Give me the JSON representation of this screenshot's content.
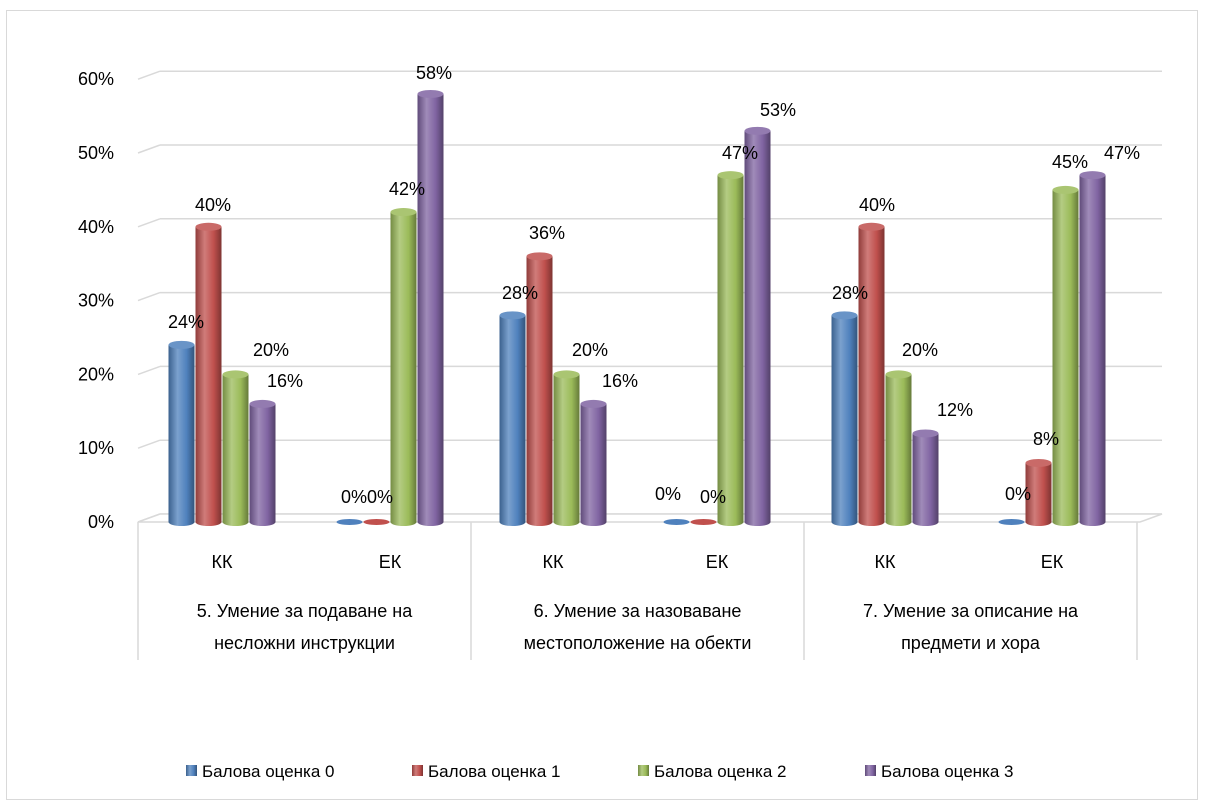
{
  "chart_data": {
    "type": "bar",
    "groups": [
      {
        "label_lines": [
          "5. Умение за подаване на",
          "несложни инструкции"
        ],
        "subcategories": [
          "КК",
          "ЕК"
        ]
      },
      {
        "label_lines": [
          "6. Умение за назоваване",
          "местоположение на обекти"
        ],
        "subcategories": [
          "КК",
          "ЕК"
        ]
      },
      {
        "label_lines": [
          "7. Умение за описание на",
          "предмети и хора"
        ],
        "subcategories": [
          "КК",
          "ЕК"
        ]
      }
    ],
    "categories": [
      "КК",
      "ЕК",
      "КК",
      "ЕК",
      "КК",
      "ЕК"
    ],
    "series": [
      {
        "name": "Балова оценка 0",
        "color": "#4F81BD",
        "values": [
          24,
          0,
          28,
          0,
          28,
          0
        ]
      },
      {
        "name": "Балова оценка 1",
        "color": "#C0504D",
        "values": [
          40,
          0,
          36,
          0,
          40,
          8
        ]
      },
      {
        "name": "Балова оценка 2",
        "color": "#9BBB59",
        "values": [
          20,
          42,
          20,
          47,
          20,
          45
        ]
      },
      {
        "name": "Балова оценка 3",
        "color": "#8064A2",
        "values": [
          16,
          58,
          16,
          53,
          12,
          47
        ]
      }
    ],
    "data_labels": [
      [
        "24%",
        "0%",
        "28%",
        "0%",
        "28%",
        "0%"
      ],
      [
        "40%",
        "0%",
        "36%",
        "0%",
        "40%",
        "8%"
      ],
      [
        "20%",
        "42%",
        "20%",
        "47%",
        "20%",
        "45%"
      ],
      [
        "16%",
        "58%",
        "16%",
        "53%",
        "12%",
        "47%"
      ]
    ],
    "y_ticks": [
      "0%",
      "10%",
      "20%",
      "30%",
      "40%",
      "50%",
      "60%"
    ],
    "ylim": [
      0,
      60
    ],
    "title": "",
    "xlabel": "",
    "ylabel": "",
    "grid": true,
    "legend_position": "bottom",
    "style": "3d-cylinder"
  }
}
